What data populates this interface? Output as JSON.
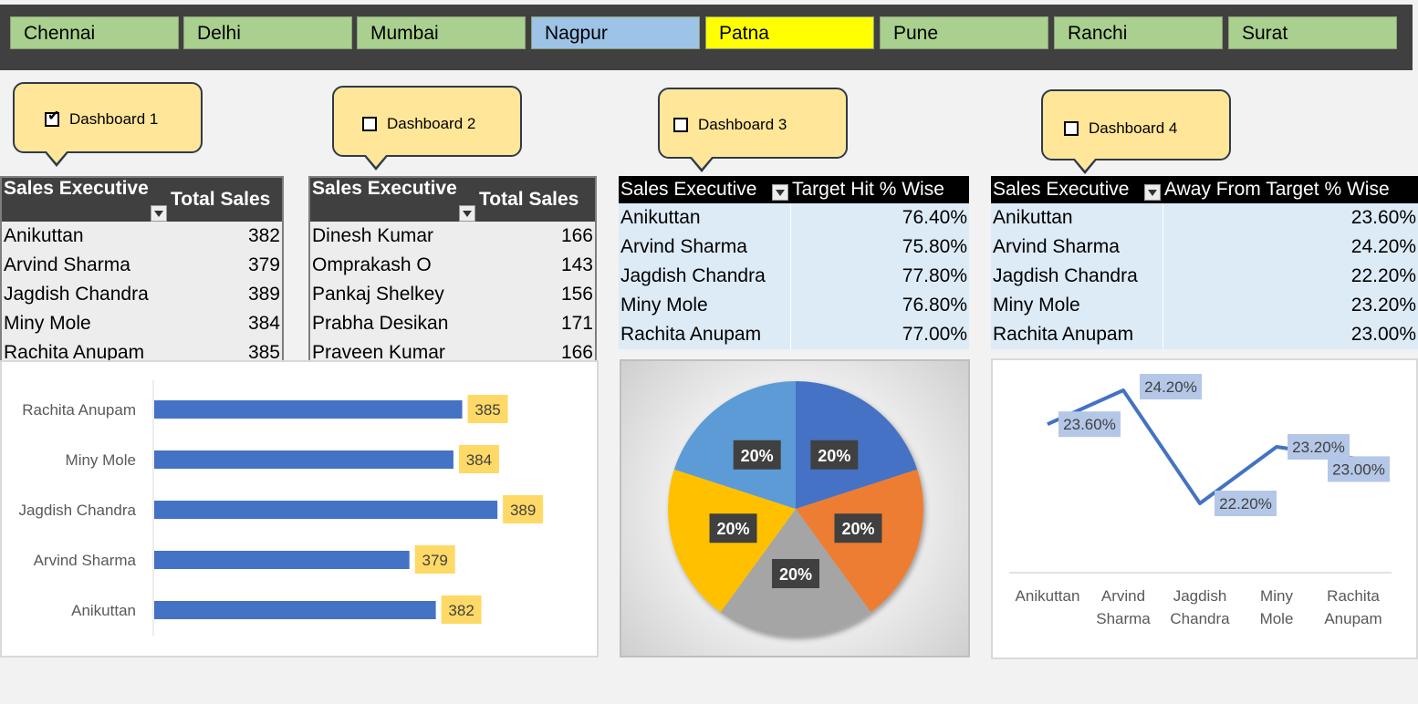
{
  "slicer": {
    "cities": [
      {
        "label": "Chennai",
        "color": "#a9d08e"
      },
      {
        "label": "Delhi",
        "color": "#a9d08e"
      },
      {
        "label": "Mumbai",
        "color": "#a9d08e"
      },
      {
        "label": "Nagpur",
        "color": "#9dc3e6"
      },
      {
        "label": "Patna",
        "color": "#ffff00"
      },
      {
        "label": "Pune",
        "color": "#a9d08e"
      },
      {
        "label": "Ranchi",
        "color": "#a9d08e"
      },
      {
        "label": "Surat",
        "color": "#a9d08e"
      }
    ]
  },
  "dashboards": [
    {
      "label": "Dashboard 1",
      "checked": true
    },
    {
      "label": "Dashboard 2",
      "checked": false
    },
    {
      "label": "Dashboard 3",
      "checked": false
    },
    {
      "label": "Dashboard 4",
      "checked": false
    }
  ],
  "table1": {
    "headers": [
      "Sales Executive",
      "Total Sales"
    ],
    "rows": [
      [
        "Anikuttan",
        "382"
      ],
      [
        "Arvind Sharma",
        "379"
      ],
      [
        "Jagdish Chandra",
        "389"
      ],
      [
        "Miny Mole",
        "384"
      ],
      [
        "Rachita Anupam",
        "385"
      ]
    ]
  },
  "table2": {
    "headers": [
      "Sales Executive",
      "Total Sales"
    ],
    "rows": [
      [
        "Dinesh Kumar",
        "166"
      ],
      [
        "Omprakash O",
        "143"
      ],
      [
        "Pankaj Shelkey",
        "156"
      ],
      [
        "Prabha Desikan",
        "171"
      ],
      [
        "Praveen Kumar",
        "166"
      ]
    ]
  },
  "table3": {
    "headers": [
      "Sales Executive",
      "Target Hit % Wise"
    ],
    "rows": [
      [
        "Anikuttan",
        "76.40%"
      ],
      [
        "Arvind Sharma",
        "75.80%"
      ],
      [
        "Jagdish Chandra",
        "77.80%"
      ],
      [
        "Miny Mole",
        "76.80%"
      ],
      [
        "Rachita Anupam",
        "77.00%"
      ]
    ]
  },
  "table4": {
    "headers": [
      "Sales Executive",
      "Away From Target % Wise"
    ],
    "rows": [
      [
        "Anikuttan",
        "23.60%"
      ],
      [
        "Arvind Sharma",
        "24.20%"
      ],
      [
        "Jagdish Chandra",
        "22.20%"
      ],
      [
        "Miny Mole",
        "23.20%"
      ],
      [
        "Rachita Anupam",
        "23.00%"
      ]
    ]
  },
  "chart_data": [
    {
      "type": "bar",
      "orientation": "horizontal",
      "categories": [
        "Rachita Anupam",
        "Miny Mole",
        "Jagdish Chandra",
        "Arvind Sharma",
        "Anikuttan"
      ],
      "values": [
        385,
        384,
        389,
        379,
        382
      ],
      "data_labels": [
        "385",
        "384",
        "389",
        "379",
        "382"
      ],
      "bar_color": "#4472c4",
      "label_bg": "#ffd966"
    },
    {
      "type": "pie",
      "slices": [
        {
          "value": 20,
          "label": "20%",
          "color": "#4472c4"
        },
        {
          "value": 20,
          "label": "20%",
          "color": "#ed7d31"
        },
        {
          "value": 20,
          "label": "20%",
          "color": "#a5a5a5"
        },
        {
          "value": 20,
          "label": "20%",
          "color": "#ffc000"
        },
        {
          "value": 20,
          "label": "20%",
          "color": "#5b9bd5"
        }
      ]
    },
    {
      "type": "line",
      "categories": [
        "Anikuttan",
        "Arvind Sharma",
        "Jagdish Chandra",
        "Miny Mole",
        "Rachita Anupam"
      ],
      "category_lines": [
        [
          "Anikuttan"
        ],
        [
          "Arvind",
          "Sharma"
        ],
        [
          "Jagdish",
          "Chandra"
        ],
        [
          "Miny",
          "Mole"
        ],
        [
          "Rachita",
          "Anupam"
        ]
      ],
      "values": [
        23.6,
        24.2,
        22.2,
        23.2,
        23.0
      ],
      "data_labels": [
        "23.60%",
        "24.20%",
        "22.20%",
        "23.20%",
        "23.00%"
      ],
      "line_color": "#4472c4",
      "label_bg": "#b4c7e7"
    }
  ]
}
